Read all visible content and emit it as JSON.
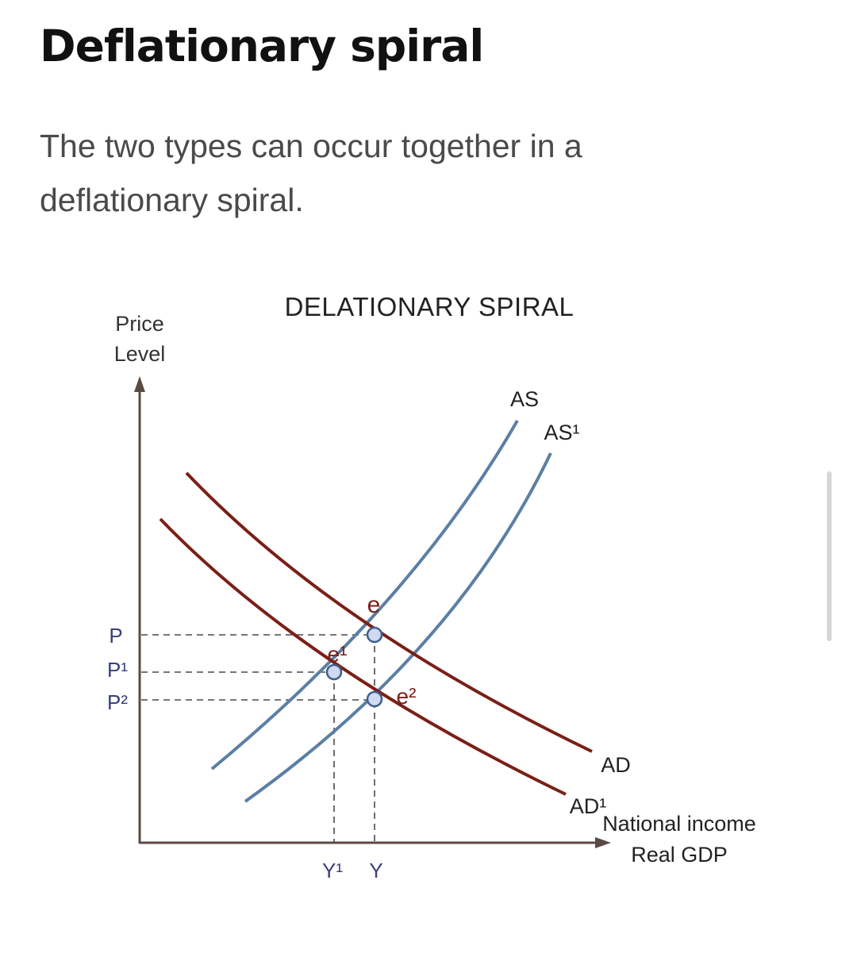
{
  "page": {
    "title": "Deflationary spiral",
    "intro": "The two types can occur together in a deflationary spiral."
  },
  "diagram": {
    "title": "DELATIONARY SPIRAL",
    "y_axis_label_line1": "Price",
    "y_axis_label_line2": "Level",
    "x_axis_label_line1": "National income",
    "x_axis_label_line2": "Real GDP",
    "price_levels": [
      "P",
      "P¹",
      "P²"
    ],
    "output_levels": [
      "Y¹",
      "Y"
    ],
    "curves": {
      "as": "AS",
      "as1": "AS¹",
      "ad": "AD",
      "ad1": "AD¹"
    },
    "equilibria": {
      "e": "e",
      "e1": "e¹",
      "e2": "e²"
    },
    "colors": {
      "supply": "#5b7fa4",
      "demand": "#7a1f17",
      "axis": "#5a4a44",
      "point_fill": "#cfd9f2",
      "point_stroke": "#3f5f8a"
    }
  }
}
